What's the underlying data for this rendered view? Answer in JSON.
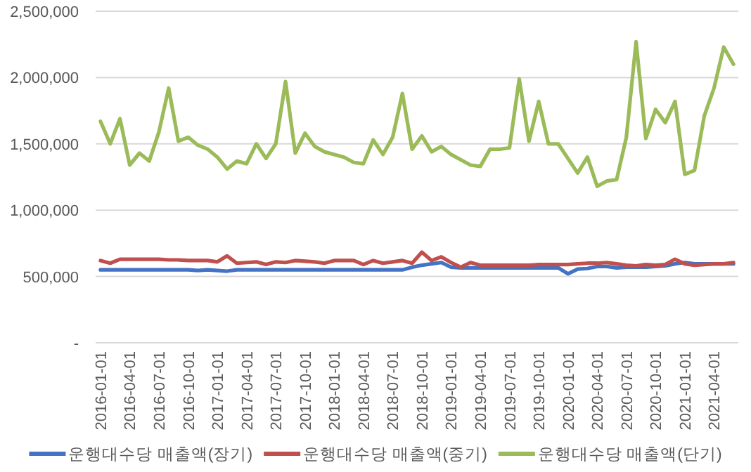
{
  "chart_data": {
    "type": "line",
    "categories": [
      "2016-01-01",
      null,
      null,
      "2016-04-01",
      null,
      null,
      "2016-07-01",
      null,
      null,
      "2016-10-01",
      null,
      null,
      "2017-01-01",
      null,
      null,
      "2017-04-01",
      null,
      null,
      "2017-07-01",
      null,
      null,
      "2017-10-01",
      null,
      null,
      "2018-01-01",
      null,
      null,
      "2018-04-01",
      null,
      null,
      "2018-07-01",
      null,
      null,
      "2018-10-01",
      null,
      null,
      "2019-01-01",
      null,
      null,
      "2019-04-01",
      null,
      null,
      "2019-07-01",
      null,
      null,
      "2019-10-01",
      null,
      null,
      "2020-01-01",
      null,
      null,
      "2020-04-01",
      null,
      null,
      "2020-07-01",
      null,
      null,
      "2020-10-01",
      null,
      null,
      "2021-01-01",
      null,
      null,
      "2021-04-01",
      null,
      null
    ],
    "series": [
      {
        "name": "운행대수당 매출액(장기)",
        "color": "#4472c4",
        "values": [
          550000,
          550000,
          550000,
          550000,
          550000,
          550000,
          550000,
          550000,
          550000,
          550000,
          545000,
          550000,
          545000,
          540000,
          550000,
          550000,
          550000,
          550000,
          550000,
          550000,
          550000,
          550000,
          550000,
          550000,
          550000,
          550000,
          550000,
          550000,
          550000,
          550000,
          550000,
          550000,
          570000,
          585000,
          595000,
          605000,
          570000,
          565000,
          565000,
          565000,
          565000,
          565000,
          565000,
          565000,
          565000,
          565000,
          565000,
          565000,
          520000,
          555000,
          560000,
          575000,
          575000,
          565000,
          570000,
          570000,
          570000,
          575000,
          580000,
          595000,
          605000,
          595000,
          595000,
          595000,
          595000,
          595000
        ]
      },
      {
        "name": "운행대수당 매출액(중기)",
        "color": "#c0504d",
        "values": [
          620000,
          600000,
          630000,
          630000,
          630000,
          630000,
          630000,
          625000,
          625000,
          620000,
          620000,
          620000,
          610000,
          655000,
          600000,
          605000,
          610000,
          590000,
          610000,
          605000,
          620000,
          615000,
          610000,
          600000,
          620000,
          620000,
          620000,
          590000,
          620000,
          600000,
          610000,
          620000,
          600000,
          683000,
          620000,
          648000,
          605000,
          570000,
          605000,
          585000,
          585000,
          585000,
          585000,
          585000,
          585000,
          590000,
          590000,
          590000,
          590000,
          595000,
          600000,
          600000,
          605000,
          595000,
          585000,
          580000,
          590000,
          585000,
          590000,
          630000,
          595000,
          585000,
          590000,
          595000,
          595000,
          605000
        ]
      },
      {
        "name": "운행대수당 매출액(단기)",
        "color": "#9bbb59",
        "values": [
          1670000,
          1500000,
          1690000,
          1340000,
          1430000,
          1370000,
          1590000,
          1920000,
          1520000,
          1550000,
          1490000,
          1460000,
          1400000,
          1310000,
          1370000,
          1350000,
          1500000,
          1390000,
          1500000,
          1970000,
          1430000,
          1580000,
          1480000,
          1440000,
          1420000,
          1400000,
          1360000,
          1350000,
          1530000,
          1420000,
          1550000,
          1880000,
          1460000,
          1560000,
          1440000,
          1480000,
          1420000,
          1380000,
          1340000,
          1330000,
          1460000,
          1460000,
          1470000,
          1990000,
          1520000,
          1820000,
          1500000,
          1500000,
          1390000,
          1280000,
          1400000,
          1180000,
          1220000,
          1230000,
          1550000,
          2270000,
          1540000,
          1760000,
          1660000,
          1820000,
          1270000,
          1300000,
          1710000,
          1920000,
          2230000,
          2100000
        ]
      }
    ],
    "ylim": [
      0,
      2500000
    ],
    "yticks": [
      {
        "value": 0,
        "label": "-"
      },
      {
        "value": 500000,
        "label": "500,000"
      },
      {
        "value": 1000000,
        "label": "1,000,000"
      },
      {
        "value": 1500000,
        "label": "1,500,000"
      },
      {
        "value": 2000000,
        "label": "2,000,000"
      },
      {
        "value": 2500000,
        "label": "2,500,000"
      }
    ],
    "grid": "y",
    "legend": "bottom"
  }
}
